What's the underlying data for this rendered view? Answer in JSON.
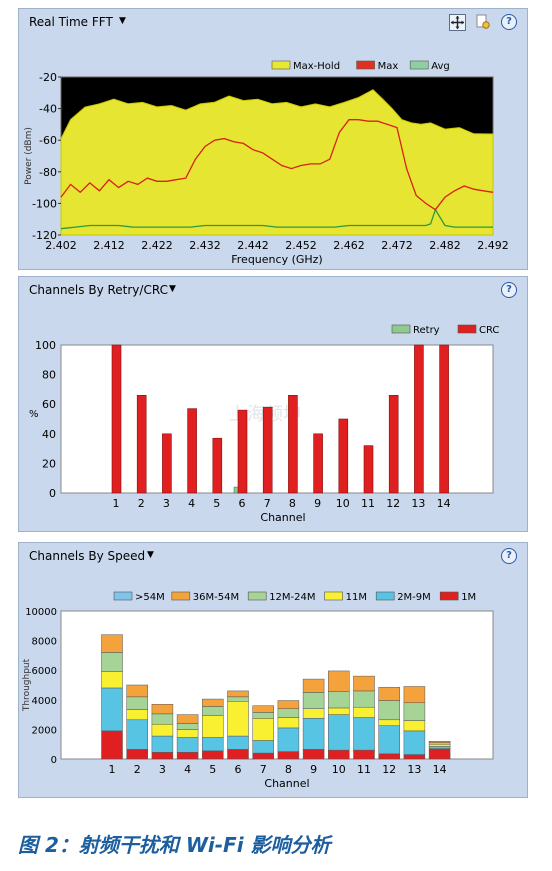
{
  "fft_panel": {
    "title": "Real Time FFT",
    "legend": [
      "Max-Hold",
      "Max",
      "Avg"
    ],
    "legend_colors": [
      "#e8e830",
      "#e03020",
      "#90d0a0"
    ],
    "ylabel": "Power (dBm)",
    "xlabel": "Frequency (GHz)",
    "y_ticks": [
      "-20",
      "-40",
      "-60",
      "-80",
      "-100",
      "-120"
    ],
    "x_ticks": [
      "2.402",
      "2.412",
      "2.422",
      "2.432",
      "2.442",
      "2.452",
      "2.462",
      "2.472",
      "2.482",
      "2.492"
    ]
  },
  "retry_panel": {
    "title": "Channels By Retry/CRC",
    "legend": [
      "Retry",
      "CRC"
    ],
    "legend_colors": [
      "#8fc98f",
      "#e02020"
    ],
    "ylabel": "%",
    "xlabel": "Channel",
    "watermark": "上海频坤",
    "y_ticks": [
      "100",
      "80",
      "60",
      "40",
      "20",
      "0"
    ]
  },
  "speed_panel": {
    "title": "Channels By Speed",
    "legend": [
      ">54M",
      "36M-54M",
      "12M-24M",
      "11M",
      "2M-9M",
      "1M"
    ],
    "legend_colors": [
      "#7fc4ec",
      "#f4a23c",
      "#a6d496",
      "#f8f030",
      "#58c4e4",
      "#e02020"
    ],
    "ylabel": "Throughput",
    "xlabel": "Channel",
    "y_ticks": [
      "10000",
      "8000",
      "6000",
      "4000",
      "2000",
      "0"
    ]
  },
  "caption": "图 2：射频干扰和 Wi-Fi 影响分析",
  "chart_data": [
    {
      "type": "line",
      "title": "Real Time FFT",
      "xlabel": "Frequency (GHz)",
      "ylabel": "Power (dBm)",
      "xlim": [
        2.402,
        2.492
      ],
      "ylim": [
        -120,
        -20
      ],
      "series": [
        {
          "name": "Max-Hold",
          "x": [
            2.402,
            2.404,
            2.407,
            2.41,
            2.413,
            2.416,
            2.419,
            2.422,
            2.425,
            2.428,
            2.431,
            2.434,
            2.437,
            2.44,
            2.443,
            2.446,
            2.449,
            2.452,
            2.455,
            2.458,
            2.461,
            2.464,
            2.467,
            2.469,
            2.471,
            2.473,
            2.475,
            2.477,
            2.479,
            2.482,
            2.485,
            2.488,
            2.492
          ],
          "values": [
            -60,
            -46,
            -40,
            -36,
            -35,
            -36,
            -37,
            -38,
            -39,
            -40,
            -38,
            -35,
            -33,
            -34,
            -35,
            -36,
            -37,
            -38,
            -38,
            -38,
            -37,
            -32,
            -29,
            -33,
            -41,
            -46,
            -50,
            -49,
            -50,
            -52,
            -53,
            -55,
            -57
          ]
        },
        {
          "name": "Max",
          "x": [
            2.402,
            2.404,
            2.406,
            2.408,
            2.41,
            2.412,
            2.414,
            2.416,
            2.418,
            2.42,
            2.422,
            2.424,
            2.426,
            2.428,
            2.43,
            2.432,
            2.434,
            2.436,
            2.438,
            2.44,
            2.442,
            2.444,
            2.446,
            2.448,
            2.45,
            2.452,
            2.454,
            2.456,
            2.458,
            2.46,
            2.462,
            2.464,
            2.466,
            2.468,
            2.47,
            2.472,
            2.474,
            2.476,
            2.478,
            2.48,
            2.482,
            2.484,
            2.486,
            2.488,
            2.49,
            2.492
          ],
          "values": [
            -96,
            -88,
            -93,
            -87,
            -92,
            -85,
            -90,
            -86,
            -88,
            -84,
            -86,
            -86,
            -85,
            -84,
            -72,
            -64,
            -60,
            -59,
            -61,
            -62,
            -66,
            -68,
            -72,
            -76,
            -78,
            -76,
            -75,
            -75,
            -72,
            -55,
            -47,
            -47,
            -48,
            -48,
            -50,
            -52,
            -78,
            -95,
            -100,
            -104,
            -96,
            -92,
            -89,
            -91,
            -92,
            -93
          ]
        },
        {
          "name": "Avg",
          "x": [
            2.402,
            2.405,
            2.408,
            2.411,
            2.414,
            2.417,
            2.42,
            2.423,
            2.426,
            2.429,
            2.432,
            2.435,
            2.438,
            2.441,
            2.444,
            2.447,
            2.45,
            2.453,
            2.456,
            2.459,
            2.462,
            2.465,
            2.468,
            2.471,
            2.474,
            2.476,
            2.478,
            2.479,
            2.48,
            2.482,
            2.484,
            2.487,
            2.49,
            2.492
          ],
          "values": [
            -116,
            -115,
            -114,
            -114,
            -114,
            -115,
            -115,
            -115,
            -115,
            -115,
            -114,
            -114,
            -114,
            -114,
            -114,
            -115,
            -115,
            -115,
            -115,
            -115,
            -114,
            -114,
            -114,
            -114,
            -114,
            -114,
            -114,
            -113,
            -104,
            -114,
            -115,
            -115,
            -115,
            -115
          ]
        }
      ]
    },
    {
      "type": "bar",
      "title": "Channels By Retry/CRC",
      "xlabel": "Channel",
      "ylabel": "%",
      "ylim": [
        0,
        100
      ],
      "categories": [
        "1",
        "2",
        "3",
        "4",
        "5",
        "6",
        "7",
        "8",
        "9",
        "10",
        "11",
        "12",
        "13",
        "14"
      ],
      "series": [
        {
          "name": "Retry",
          "values": [
            0,
            0,
            0,
            0,
            0,
            4,
            0,
            0,
            0,
            0,
            0,
            0,
            0,
            0
          ]
        },
        {
          "name": "CRC",
          "values": [
            100,
            66,
            40,
            57,
            37,
            56,
            58,
            66,
            40,
            50,
            32,
            66,
            100,
            100
          ]
        }
      ]
    },
    {
      "type": "bar",
      "stacked": true,
      "title": "Channels By Speed",
      "xlabel": "Channel",
      "ylabel": "Throughput",
      "ylim": [
        0,
        10000
      ],
      "categories": [
        "1",
        "2",
        "3",
        "4",
        "5",
        "6",
        "7",
        "8",
        "9",
        "10",
        "11",
        "12",
        "13",
        "14"
      ],
      "series": [
        {
          "name": "1M",
          "values": [
            1900,
            650,
            450,
            450,
            550,
            650,
            400,
            500,
            650,
            600,
            600,
            350,
            300,
            700
          ]
        },
        {
          "name": "2M-9M",
          "values": [
            2900,
            2000,
            1100,
            1000,
            900,
            900,
            850,
            1600,
            2100,
            2400,
            2200,
            1900,
            1600,
            150
          ]
        },
        {
          "name": "11M",
          "values": [
            1100,
            700,
            800,
            550,
            1500,
            2350,
            1500,
            700,
            650,
            450,
            700,
            400,
            700,
            150
          ]
        },
        {
          "name": "12M-24M",
          "values": [
            1300,
            850,
            700,
            400,
            600,
            300,
            400,
            600,
            1100,
            1100,
            1100,
            1300,
            1200,
            100
          ]
        },
        {
          "name": "36M-54M",
          "values": [
            1200,
            800,
            650,
            600,
            500,
            400,
            450,
            550,
            900,
            1400,
            1000,
            900,
            1100,
            100
          ]
        },
        {
          "name": ">54M",
          "values": [
            0,
            0,
            0,
            0,
            0,
            0,
            0,
            0,
            0,
            0,
            0,
            0,
            0,
            0
          ]
        }
      ]
    }
  ]
}
